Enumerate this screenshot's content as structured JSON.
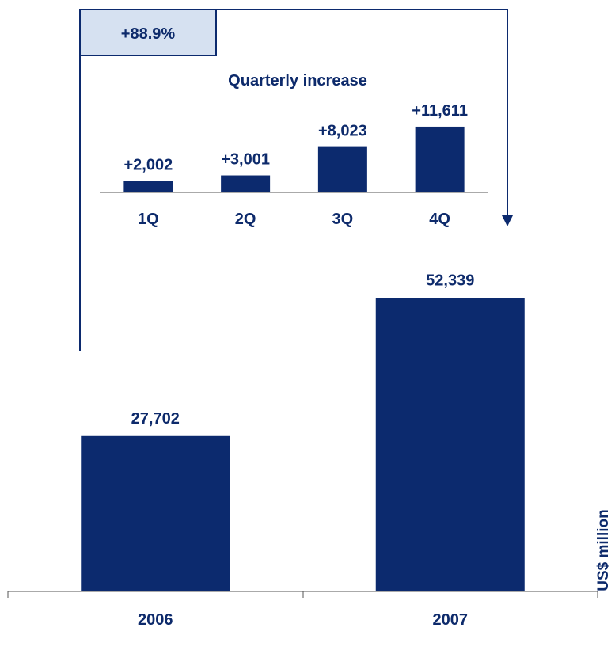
{
  "colors": {
    "bar": "#0c2a6e",
    "text": "#0d2a6b",
    "axis": "#555555",
    "badge_fill": "#d6e1f1",
    "bracket": "#0c2a6e"
  },
  "growth_badge": "+88.9%",
  "ylabel": "US$ million",
  "chart_data": [
    {
      "type": "bar",
      "title": "",
      "categories": [
        "2006",
        "2007"
      ],
      "values": [
        27702,
        52339
      ],
      "value_labels": [
        "27,702",
        "52,339"
      ],
      "ylabel": "US$ million",
      "ylim": [
        0,
        60000
      ],
      "grid": false,
      "legend": "none"
    },
    {
      "type": "bar",
      "title": "Quarterly increase",
      "categories": [
        "1Q",
        "2Q",
        "3Q",
        "4Q"
      ],
      "values": [
        2002,
        3001,
        8023,
        11611
      ],
      "value_labels": [
        "+2,002",
        "+3,001",
        "+8,023",
        "+11,611"
      ],
      "ylim": [
        0,
        13000
      ],
      "grid": false,
      "legend": "none"
    }
  ]
}
